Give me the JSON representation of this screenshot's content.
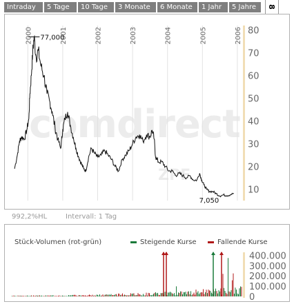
{
  "tabs": [
    "Intraday",
    "5 Tage",
    "10 Tage",
    "3 Monate",
    "6 Monate",
    "1 Jahr",
    "5 Jahre"
  ],
  "tab_extra": "8",
  "watermark": "comdirect",
  "symbol": "ZPF",
  "footer": {
    "percent": "992,2%HL",
    "interval": "Intervall: 1 Tag"
  },
  "annotations": {
    "high": "77,000",
    "low": "7,050"
  },
  "volume": {
    "title": "Stück-Volumen (rot-grün)",
    "legend_up": "Steigende Kurse",
    "legend_down": "Fallende Kurse",
    "up_color": "#1a7a3a",
    "down_color": "#b01818"
  },
  "chart_data": [
    {
      "type": "line",
      "x_ticks": [
        "2000",
        "2001",
        "2002",
        "2003",
        "2004",
        "2005",
        "2006"
      ],
      "y_ticks": [
        10,
        20,
        30,
        40,
        50,
        60,
        70,
        80
      ],
      "ylim": [
        5,
        82
      ],
      "series": [
        {
          "values": [
            [
              1999.62,
              19
            ],
            [
              1999.7,
              25
            ],
            [
              1999.76,
              31
            ],
            [
              1999.82,
              33
            ],
            [
              1999.9,
              32
            ],
            [
              1999.97,
              36
            ],
            [
              2000.03,
              41
            ],
            [
              2000.06,
              52
            ],
            [
              2000.1,
              60
            ],
            [
              2000.14,
              70
            ],
            [
              2000.18,
              77
            ],
            [
              2000.24,
              68
            ],
            [
              2000.3,
              71
            ],
            [
              2000.38,
              64
            ],
            [
              2000.46,
              60
            ],
            [
              2000.55,
              52
            ],
            [
              2000.62,
              49
            ],
            [
              2000.7,
              44
            ],
            [
              2000.78,
              37
            ],
            [
              2000.86,
              32
            ],
            [
              2000.94,
              28
            ],
            [
              2001.0,
              36
            ],
            [
              2001.06,
              41
            ],
            [
              2001.14,
              44
            ],
            [
              2001.22,
              38
            ],
            [
              2001.3,
              33
            ],
            [
              2001.38,
              28
            ],
            [
              2001.46,
              24
            ],
            [
              2001.54,
              21
            ],
            [
              2001.6,
              19
            ],
            [
              2001.66,
              18
            ],
            [
              2001.74,
              24
            ],
            [
              2001.82,
              28
            ],
            [
              2001.9,
              26
            ],
            [
              2002.0,
              24
            ],
            [
              2002.1,
              25
            ],
            [
              2002.2,
              27
            ],
            [
              2002.3,
              25
            ],
            [
              2002.4,
              23
            ],
            [
              2002.5,
              20
            ],
            [
              2002.6,
              18
            ],
            [
              2002.7,
              23
            ],
            [
              2002.8,
              25
            ],
            [
              2002.9,
              27
            ],
            [
              2003.0,
              30
            ],
            [
              2003.1,
              33
            ],
            [
              2003.2,
              34
            ],
            [
              2003.3,
              31
            ],
            [
              2003.4,
              34
            ],
            [
              2003.5,
              33
            ],
            [
              2003.56,
              36
            ],
            [
              2003.62,
              32
            ],
            [
              2003.66,
              24
            ],
            [
              2003.74,
              22
            ],
            [
              2003.84,
              22
            ],
            [
              2003.94,
              20
            ],
            [
              2004.04,
              18
            ],
            [
              2004.14,
              18
            ],
            [
              2004.24,
              16
            ],
            [
              2004.34,
              17
            ],
            [
              2004.44,
              16
            ],
            [
              2004.54,
              15
            ],
            [
              2004.64,
              16
            ],
            [
              2004.74,
              14
            ],
            [
              2004.84,
              14
            ],
            [
              2004.92,
              17
            ],
            [
              2004.98,
              14
            ],
            [
              2005.04,
              12
            ],
            [
              2005.12,
              10
            ],
            [
              2005.2,
              9
            ],
            [
              2005.3,
              9
            ],
            [
              2005.4,
              8
            ],
            [
              2005.5,
              7.05
            ],
            [
              2005.6,
              7.5
            ],
            [
              2005.7,
              7.2
            ],
            [
              2005.8,
              7.6
            ],
            [
              2005.9,
              8.2
            ]
          ]
        }
      ]
    },
    {
      "type": "bar",
      "title": "Stück-Volumen (rot-grün)",
      "y_ticks": [
        "0",
        "100.000",
        "200.000",
        "300.000",
        "400.000"
      ],
      "ylim": [
        0,
        430000
      ],
      "legend": [
        "Steigende Kurse",
        "Fallende Kurse"
      ]
    }
  ]
}
